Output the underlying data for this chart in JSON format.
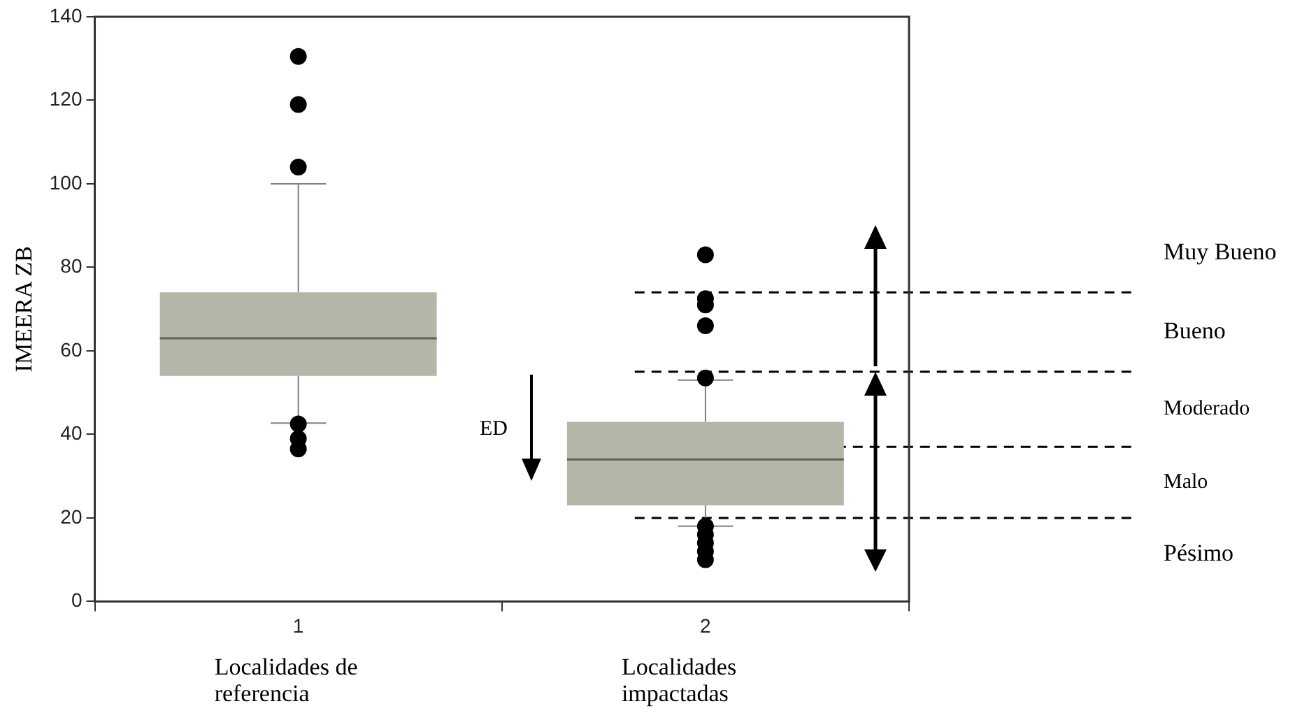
{
  "chart_data": {
    "type": "box",
    "ylabel": "IMEERA ZB",
    "categories": [
      "1",
      "2"
    ],
    "ylim": [
      0,
      140
    ],
    "yticks": [
      0,
      20,
      40,
      60,
      80,
      100,
      120,
      140
    ],
    "color": "#b5b5a8",
    "boxes": [
      {
        "low": 42.7,
        "q1": 54,
        "median": 63,
        "q3": 74,
        "high": 100,
        "outliers": [
          130.5,
          119,
          104,
          42.5,
          39,
          36.5
        ]
      },
      {
        "low": 18,
        "q1": 23,
        "median": 34,
        "q3": 43,
        "high": 53,
        "outliers": [
          83,
          72.5,
          71,
          66,
          53.5,
          18,
          16,
          14,
          12,
          10
        ]
      }
    ],
    "ref_lines": [
      {
        "axis": "y",
        "value": 74,
        "line_style": "dashed",
        "color": "#000000"
      },
      {
        "axis": "y",
        "value": 55,
        "line_style": "dashed",
        "color": "#000000"
      },
      {
        "axis": "y",
        "value": 37,
        "line_style": "dashed",
        "color": "#000000"
      },
      {
        "axis": "y",
        "value": 20,
        "line_style": "dashed",
        "color": "#000000"
      }
    ],
    "annotations": [
      "Muy Bueno",
      "Bueno",
      "Moderado",
      "Malo",
      "Pésimo",
      "ED",
      "Localidades de referencia",
      "Localidades impactadas"
    ]
  }
}
